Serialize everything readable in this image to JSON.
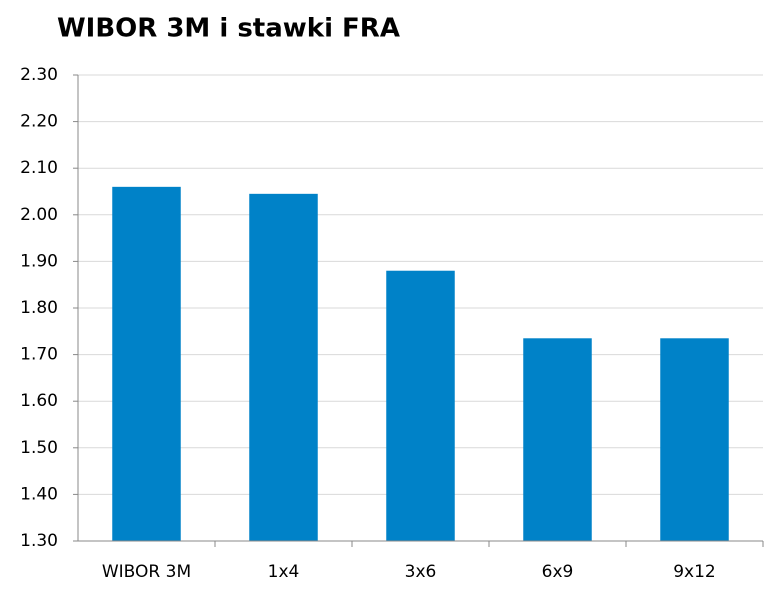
{
  "chart_data": {
    "type": "bar",
    "title": "WIBOR 3M i stawki FRA",
    "categories": [
      "WIBOR 3M",
      "1x4",
      "3x6",
      "6x9",
      "9x12"
    ],
    "values": [
      2.06,
      2.045,
      1.88,
      1.735,
      1.735
    ],
    "color": "#0082c8",
    "ylim": [
      1.3,
      2.3
    ],
    "yticks": [
      {
        "value": 1.3,
        "label": "1.30"
      },
      {
        "value": 1.4,
        "label": "1.40"
      },
      {
        "value": 1.5,
        "label": "1.50"
      },
      {
        "value": 1.6,
        "label": "1.60"
      },
      {
        "value": 1.7,
        "label": "1.70"
      },
      {
        "value": 1.8,
        "label": "1.80"
      },
      {
        "value": 1.9,
        "label": "1.90"
      },
      {
        "value": 2.0,
        "label": "2.00"
      },
      {
        "value": 2.1,
        "label": "2.10"
      },
      {
        "value": 2.2,
        "label": "2.20"
      },
      {
        "value": 2.3,
        "label": "2.30"
      }
    ],
    "grid": true
  }
}
